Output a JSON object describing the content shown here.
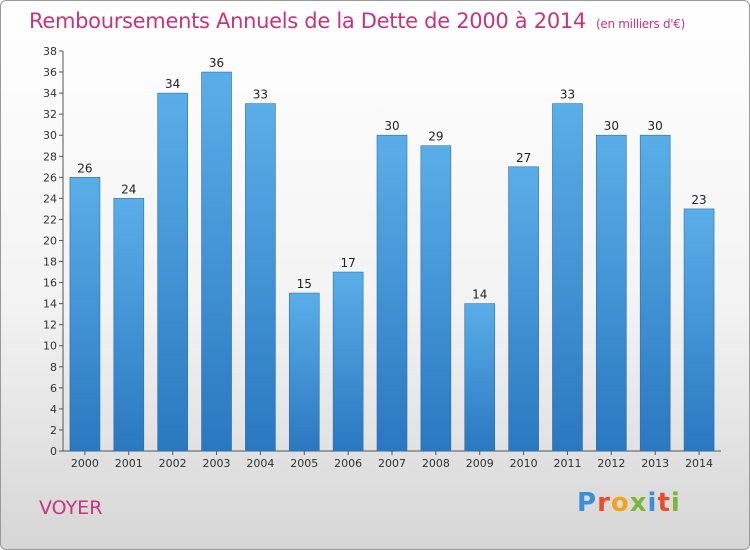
{
  "header": {
    "title": "Remboursements Annuels de la Dette de 2000 à 2014",
    "unit": "(en milliers d'€)"
  },
  "commune": "VOYER",
  "logo": {
    "letters": [
      "P",
      "r",
      "o",
      "x",
      "i",
      "t",
      "i"
    ]
  },
  "colors": {
    "bar": "#4a9fe0",
    "bar_dark": "#2e7fc6",
    "title": "#c8347a"
  },
  "chart_data": {
    "type": "bar",
    "title": "Remboursements Annuels de la Dette de 2000 à 2014",
    "xlabel": "",
    "ylabel": "",
    "ylim": [
      0,
      38
    ],
    "ytick_step": 2,
    "grid": false,
    "categories": [
      "2000",
      "2001",
      "2002",
      "2003",
      "2004",
      "2005",
      "2006",
      "2007",
      "2008",
      "2009",
      "2010",
      "2011",
      "2012",
      "2013",
      "2014"
    ],
    "values": [
      26,
      24,
      34,
      36,
      33,
      15,
      17,
      30,
      29,
      14,
      27,
      33,
      30,
      30,
      23
    ]
  }
}
